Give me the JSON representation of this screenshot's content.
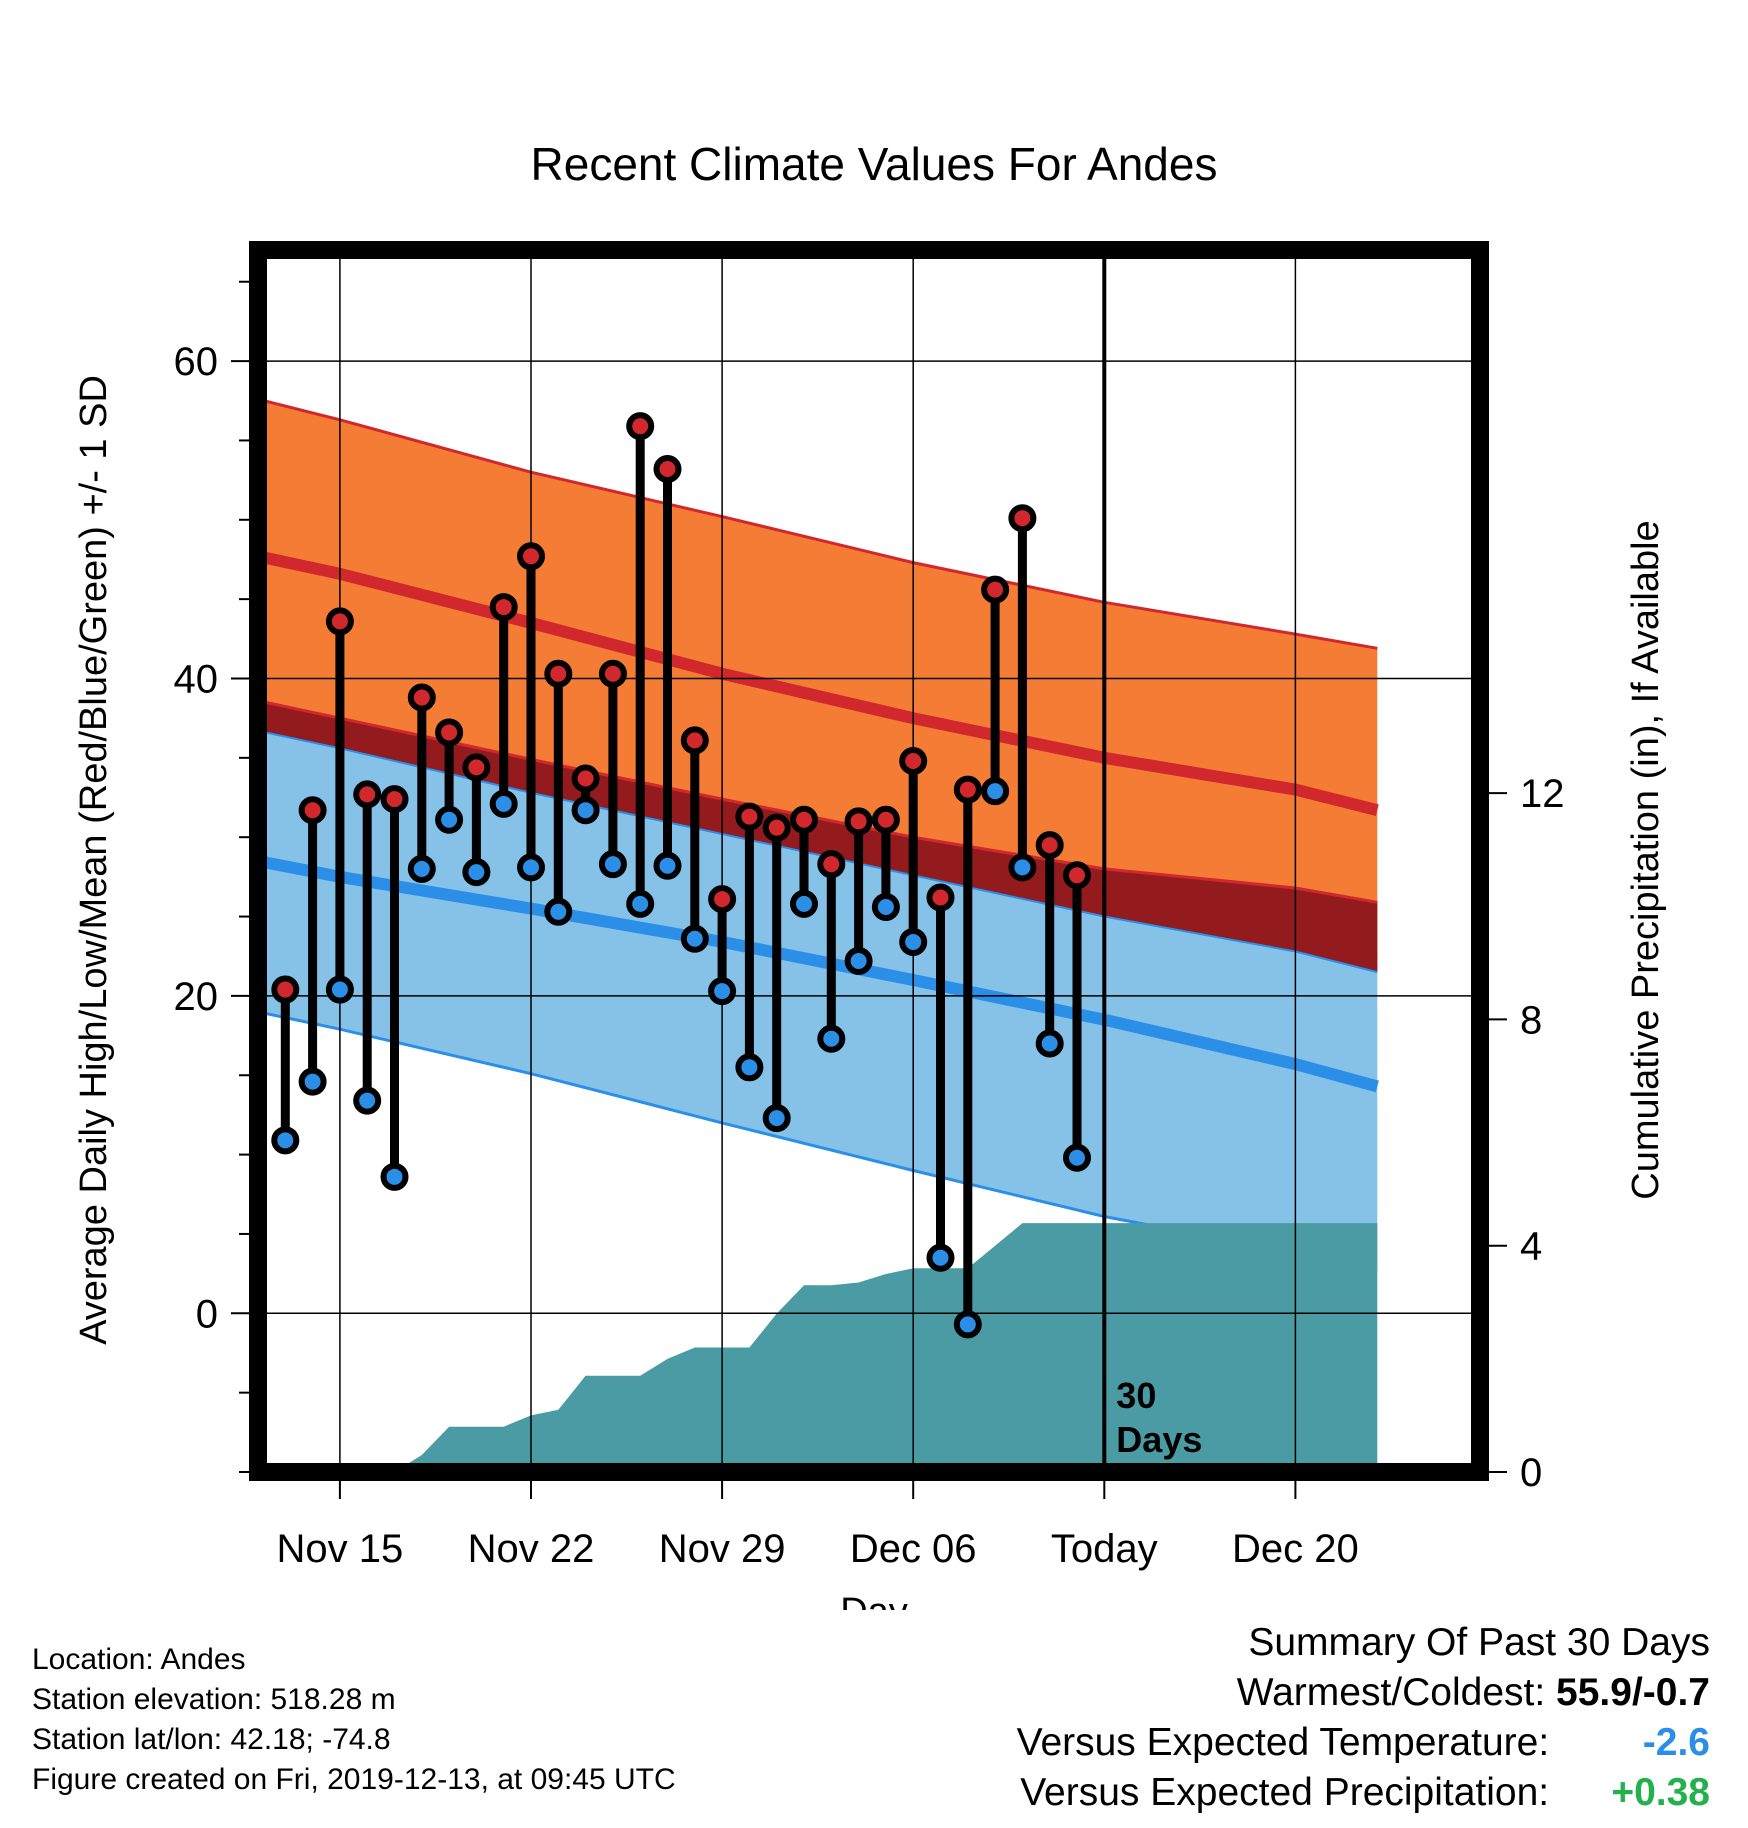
{
  "info": {
    "location": "Location: Andes",
    "elevation": "Station elevation: 518.28 m",
    "latlon": "Station lat/lon: 42.18; -74.8",
    "created": "Figure created on Fri, 2019-12-13, at 09:45 UTC"
  },
  "summary": {
    "heading": "Summary Of Past 30 Days",
    "warmest_label": "Warmest/Coldest:",
    "warmest_value": "55.9/-0.7",
    "temp_label": "Versus Expected Temperature:",
    "temp_value": "-2.6",
    "precip_label": "Versus Expected Precipitation:",
    "precip_value": "+0.38",
    "colors": {
      "temp_value": "#2b8fe8",
      "precip_value": "#22b14c"
    }
  },
  "chart_data": {
    "type": "line",
    "title": "Recent Climate Values For Andes",
    "xlabel": "Day",
    "ylabel": "Average Daily High/Low/Mean (Red/Blue/Green) +/- 1 SD",
    "y2label": "Cumulative Precipitation (in), If Available",
    "today_marker": "Today",
    "days_label": "30 Days",
    "x_range": [
      "Nov 12",
      "Dec 23"
    ],
    "x_ticks": [
      "Nov 15",
      "Nov 22",
      "Nov 29",
      "Dec 06",
      "Today",
      "Dec 20"
    ],
    "x_tick_dates": [
      "Nov 15",
      "Nov 22",
      "Nov 29",
      "Dec 06",
      "Dec 13",
      "Dec 20"
    ],
    "ylim": [
      -10,
      67
    ],
    "y_ticks": [
      0,
      20,
      40,
      60
    ],
    "y2lim": [
      0,
      21.6
    ],
    "y2_ticks": [
      0,
      4,
      8,
      12
    ],
    "grid": true,
    "normals": {
      "dates": [
        "Nov 12",
        "Nov 15",
        "Nov 22",
        "Nov 29",
        "Dec 06",
        "Dec 13",
        "Dec 20",
        "Dec 23"
      ],
      "high_mean": [
        47.7,
        46.6,
        43.5,
        40.3,
        37.5,
        35.0,
        33.0,
        31.7
      ],
      "high_upper": [
        57.6,
        56.3,
        53.0,
        50.2,
        47.3,
        44.8,
        42.8,
        41.9
      ],
      "high_lower": [
        38.6,
        37.5,
        34.9,
        32.4,
        30.0,
        28.0,
        26.8,
        25.9
      ],
      "low_mean": [
        28.5,
        27.5,
        25.5,
        23.4,
        21.0,
        18.5,
        15.7,
        14.3
      ],
      "low_upper": [
        36.7,
        35.6,
        32.8,
        30.2,
        27.6,
        25.0,
        22.8,
        21.5
      ],
      "low_lower": [
        19.0,
        17.9,
        15.1,
        12.0,
        9.0,
        6.1,
        3.8,
        2.7
      ],
      "daily_mean_upper": [
        37.2,
        36.1,
        33.8,
        31.3,
        28.8,
        26.2,
        23.9,
        22.8
      ]
    },
    "series": [
      {
        "name": "High",
        "color": "#d1282d",
        "dates": [
          "Nov 13",
          "Nov 14",
          "Nov 15",
          "Nov 16",
          "Nov 17",
          "Nov 18",
          "Nov 19",
          "Nov 20",
          "Nov 21",
          "Nov 22",
          "Nov 23",
          "Nov 24",
          "Nov 25",
          "Nov 26",
          "Nov 27",
          "Nov 28",
          "Nov 29",
          "Nov 30",
          "Dec 01",
          "Dec 02",
          "Dec 03",
          "Dec 04",
          "Dec 05",
          "Dec 06",
          "Dec 07",
          "Dec 08",
          "Dec 09",
          "Dec 10",
          "Dec 11",
          "Dec 12"
        ],
        "values": [
          20.4,
          31.7,
          43.6,
          32.7,
          32.4,
          38.8,
          36.6,
          34.4,
          44.5,
          47.7,
          40.3,
          33.7,
          40.3,
          55.9,
          53.2,
          36.1,
          26.1,
          31.3,
          30.6,
          31.1,
          28.3,
          31.0,
          31.1,
          34.8,
          26.2,
          33.0,
          45.6,
          50.1,
          29.5,
          27.6
        ]
      },
      {
        "name": "Low",
        "color": "#2b8fe8",
        "dates": [
          "Nov 13",
          "Nov 14",
          "Nov 15",
          "Nov 16",
          "Nov 17",
          "Nov 18",
          "Nov 19",
          "Nov 20",
          "Nov 21",
          "Nov 22",
          "Nov 23",
          "Nov 24",
          "Nov 25",
          "Nov 26",
          "Nov 27",
          "Nov 28",
          "Nov 29",
          "Nov 30",
          "Dec 01",
          "Dec 02",
          "Dec 03",
          "Dec 04",
          "Dec 05",
          "Dec 06",
          "Dec 07",
          "Dec 08",
          "Dec 09",
          "Dec 10",
          "Dec 11",
          "Dec 12"
        ],
        "values": [
          10.9,
          14.6,
          20.4,
          13.4,
          8.6,
          28.0,
          31.1,
          27.8,
          32.1,
          28.1,
          25.3,
          31.7,
          28.3,
          25.8,
          28.2,
          23.6,
          20.3,
          15.5,
          12.3,
          25.8,
          17.3,
          22.2,
          25.6,
          23.4,
          3.5,
          -0.7,
          32.9,
          28.1,
          17.0,
          9.8
        ]
      }
    ],
    "precipitation": {
      "name": "Cumulative Precipitation",
      "color": "#4a9ba3",
      "dates": [
        "Nov 17",
        "Nov 18",
        "Nov 19",
        "Nov 20",
        "Nov 21",
        "Nov 22",
        "Nov 23",
        "Nov 24",
        "Nov 25",
        "Nov 26",
        "Nov 27",
        "Nov 28",
        "Nov 29",
        "Nov 30",
        "Dec 01",
        "Dec 02",
        "Dec 03",
        "Dec 04",
        "Dec 05",
        "Dec 06",
        "Dec 07",
        "Dec 08",
        "Dec 09",
        "Dec 10",
        "Dec 11",
        "Dec 12",
        "Dec 23"
      ],
      "values": [
        0.0,
        0.3,
        0.8,
        0.8,
        0.8,
        1.0,
        1.1,
        1.7,
        1.7,
        1.7,
        2.0,
        2.2,
        2.2,
        2.2,
        2.8,
        3.3,
        3.3,
        3.35,
        3.5,
        3.6,
        3.6,
        3.6,
        4.0,
        4.4,
        4.4,
        4.4,
        4.4
      ]
    }
  }
}
